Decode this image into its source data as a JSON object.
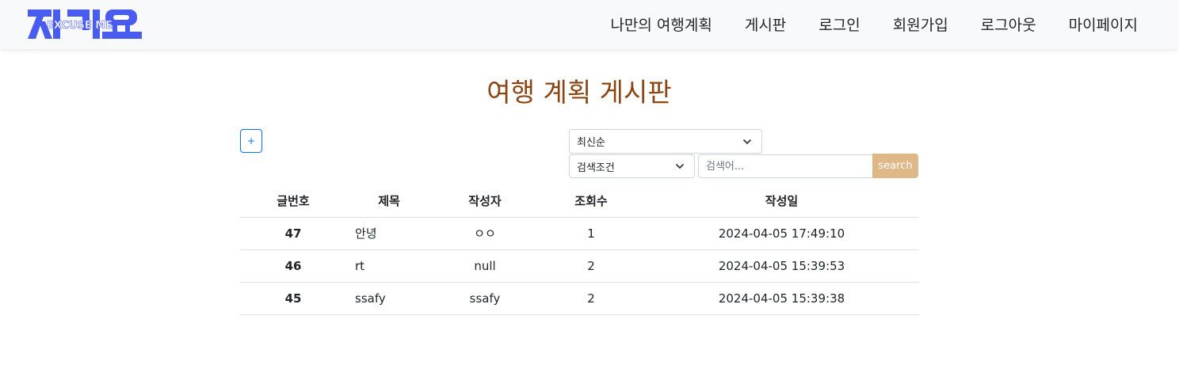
{
  "header": {
    "logo_text": "EXCUSE ME",
    "logo_hangul": "저기요",
    "nav": [
      "나만의 여행계획",
      "게시판",
      "로그인",
      "회원가입",
      "로그아웃",
      "마이페이지"
    ]
  },
  "page": {
    "title": "여행 계획 게시판"
  },
  "controls": {
    "add_label": "+",
    "sort_selected": "최신순",
    "condition_selected": "검색조건",
    "search_placeholder": "검색어...",
    "search_label": "search"
  },
  "table": {
    "headers": [
      "글번호",
      "제목",
      "작성자",
      "조회수",
      "작성일"
    ],
    "rows": [
      [
        "47",
        "안녕",
        "ㅇㅇ",
        "1",
        "2024-04-05 17:49:10"
      ],
      [
        "46",
        "rt",
        "null",
        "2",
        "2024-04-05 15:39:53"
      ],
      [
        "45",
        "ssafy",
        "ssafy",
        "2",
        "2024-04-05 15:39:38"
      ]
    ]
  },
  "colors": {
    "logo": "#4a5cf0",
    "title": "#8b4513",
    "search_button": "#deb887",
    "add_button": "#0d6efd"
  }
}
